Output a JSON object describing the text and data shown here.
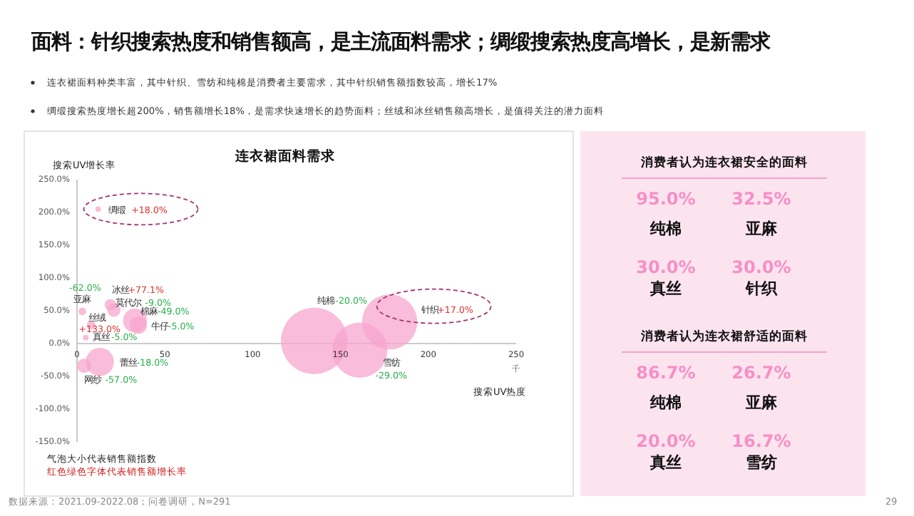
{
  "chart_data": [
    {
      "type": "bubble",
      "title": "连衣裙面料需求",
      "xlabel": "搜索UV热度",
      "ylabel": "搜索UV增长率",
      "xlim": [
        0,
        250
      ],
      "ylim": [
        -150,
        250
      ],
      "xticks": [
        0,
        50,
        100,
        150,
        200,
        250
      ],
      "yticks": [
        {
          "value": -150,
          "label": "-150.0%"
        },
        {
          "value": -100,
          "label": "-100.0%"
        },
        {
          "value": -50,
          "label": "-50.0%"
        },
        {
          "value": 0,
          "label": "0.0%"
        },
        {
          "value": 50,
          "label": "50.0%"
        },
        {
          "value": 100,
          "label": "100.0%"
        },
        {
          "value": 150,
          "label": "150.0%"
        },
        {
          "value": 200,
          "label": "200.0%"
        },
        {
          "value": 250,
          "label": "250.0%"
        }
      ],
      "series": [
        {
          "name": "绸缎",
          "color": "#f7a6cd",
          "x": [
            12
          ],
          "values": [
            205
          ],
          "sizes": [
            0.007
          ]
        },
        {
          "name": "亚麻",
          "color": "#f7a6cd",
          "x": [
            3
          ],
          "values": [
            49
          ],
          "sizes": [
            0.013
          ]
        },
        {
          "name": "冰丝",
          "color": "#f7a6cd",
          "x": [
            19
          ],
          "values": [
            59
          ],
          "sizes": [
            0.03
          ]
        },
        {
          "name": "莫代尔",
          "color": "#f7a6cd",
          "x": [
            21
          ],
          "values": [
            51
          ],
          "sizes": [
            0.04
          ]
        },
        {
          "name": "棉麻",
          "color": "#f7a6cd",
          "x": [
            33
          ],
          "values": [
            35
          ],
          "sizes": [
            0.13
          ]
        },
        {
          "name": "牛仔",
          "color": "#f7a6cd",
          "x": [
            35
          ],
          "values": [
            28
          ],
          "sizes": [
            0.066
          ]
        },
        {
          "name": "丝绒",
          "color": "#f7a6cd",
          "x": [
            8
          ],
          "values": [
            28
          ],
          "sizes": [
            0.017
          ]
        },
        {
          "name": "真丝",
          "color": "#f7a6cd",
          "x": [
            5
          ],
          "values": [
            9
          ],
          "sizes": [
            0.007
          ]
        },
        {
          "name": "蕾丝",
          "color": "#f7a6cd",
          "x": [
            13
          ],
          "values": [
            -28
          ],
          "sizes": [
            0.18
          ]
        },
        {
          "name": "网纱",
          "color": "#f7a6cd",
          "x": [
            4
          ],
          "values": [
            -34
          ],
          "sizes": [
            0.046
          ]
        },
        {
          "name": "纯棉",
          "color": "#f7a6cd",
          "x": [
            135
          ],
          "values": [
            4
          ],
          "sizes": [
            1
          ]
        },
        {
          "name": "雪纺",
          "color": "#f7a6cd",
          "x": [
            161
          ],
          "values": [
            -10
          ],
          "sizes": [
            0.69
          ]
        },
        {
          "name": "针织",
          "color": "#f7a6cd",
          "x": [
            178
          ],
          "values": [
            33
          ],
          "sizes": [
            0.69
          ]
        }
      ],
      "annotations": [
        "面料：针织搜索热度和销售额高，是主流面料需求；绸缎搜索热度高增长，是新需求",
        "连衣裙面料种类丰富，其中针织、雪纺和纯棉是消费者主要需求，其中针织销售额指数较高，增长17%",
        "绸缎搜索热度增长超200%，销售额增长18%，是需求快速增长的趋势面料；丝绒和冰丝销售额高增长，是值得关注的潜力面料",
        "气泡大小代表销售额指数",
        "红色绿色字体代表销售额增长率",
        "数据来源：2021.09-2022.08；问卷调研，N=291",
        "29",
        "千",
        "+18.0%",
        "-62.0%",
        "+77.1%",
        "-9.0%",
        "-49.0%",
        "-5.0%",
        "+133.0%",
        "-5.0%",
        "-18.0%",
        "-57.0%",
        "-20.0%",
        "-29.0%",
        "+17.0%"
      ]
    },
    {
      "type": "other",
      "title": "消费者认为连衣裙安全的面料",
      "categories": [
        "纯棉",
        "亚麻",
        "真丝",
        "针织"
      ],
      "value_labels": [
        "95.0%",
        "32.5%",
        "30.0%",
        "30.0%"
      ],
      "color": "#f78fc6"
    },
    {
      "type": "other",
      "title": "消费者认为连衣裙舒适的面料",
      "categories": [
        "纯棉",
        "亚麻",
        "真丝",
        "雪纺"
      ],
      "value_labels": [
        "86.7%",
        "26.7%",
        "20.0%",
        "16.7%"
      ],
      "color": "#f78fc6"
    }
  ]
}
